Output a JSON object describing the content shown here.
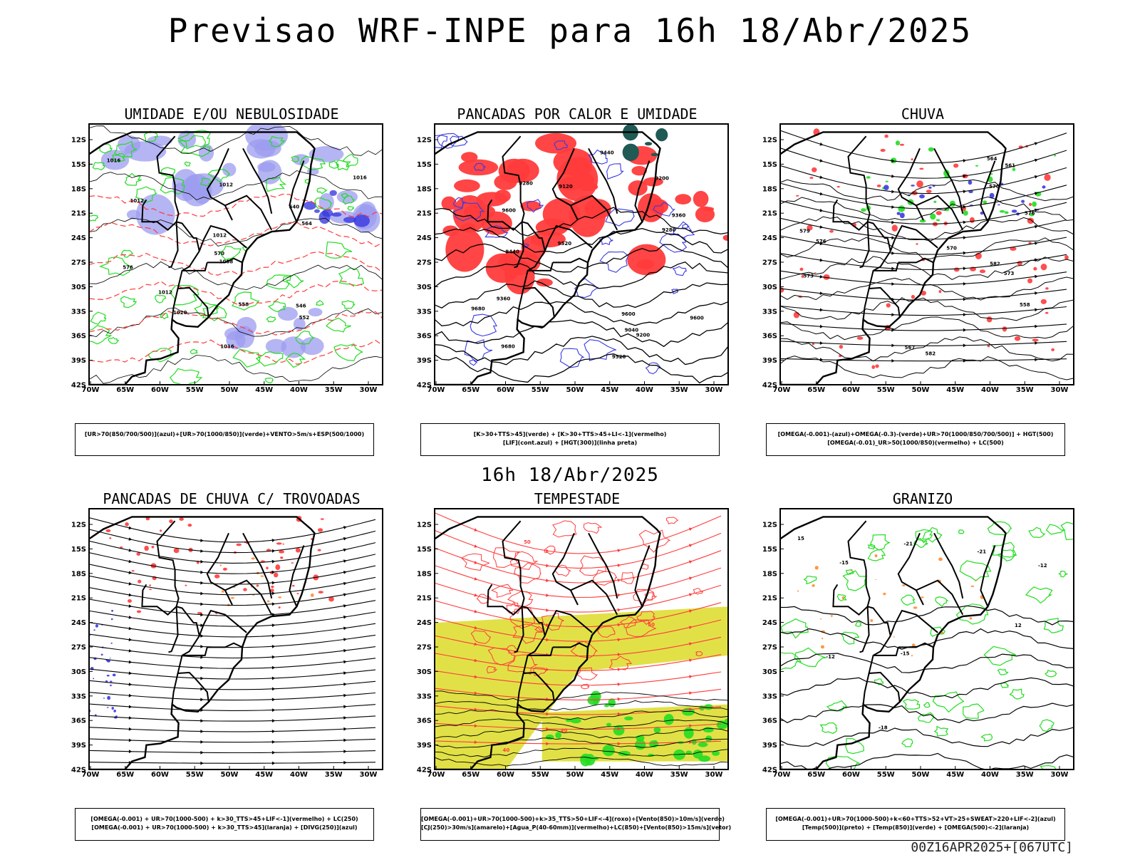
{
  "header": {
    "title": "Previsao WRF-INPE  para 16h 18/Abr/2025"
  },
  "mid_title": "16h 18/Abr/2025",
  "footer": "00Z16APR2025+[067UTC]",
  "axes": {
    "y_labels": [
      "12S",
      "15S",
      "18S",
      "21S",
      "24S",
      "27S",
      "30S",
      "33S",
      "36S",
      "39S",
      "42S"
    ],
    "x_labels": [
      "70W",
      "65W",
      "60W",
      "55W",
      "50W",
      "45W",
      "40W",
      "35W",
      "30W"
    ]
  },
  "colors": {
    "blue_fill": "#9c9cf0",
    "blue_dark": "#3a3ae0",
    "green": "#22dd22",
    "red": "#ff3b3b",
    "dark_teal": "#1f5a55",
    "yellow": "#dede33",
    "orange": "#ff8c33"
  },
  "panels": [
    {
      "title": "UMIDADE E/OU NEBULOSIDADE",
      "legend": [
        "[UR>70(850/700/500)](azul)+[UR>70(1000/850)](verde)+VENTO>5m/s+ESP(500/1000)"
      ],
      "labels": [
        "1012",
        "1016",
        "1012",
        "1012",
        "1016",
        "1016",
        "1012",
        "1020",
        "1008",
        "570",
        "576",
        "564",
        "558",
        "552",
        "546",
        "540"
      ]
    },
    {
      "title": "PANCADAS POR CALOR E UMIDADE",
      "legend": [
        "[K>30+TTS>45](verde) + [K>30+TTS>45+LI<-1](vermelho)",
        "[LIF](cont.azul) + [HGT(300)](linha preta)"
      ],
      "labels": [
        "9680",
        "9600",
        "9680",
        "9600",
        "9520",
        "9600",
        "9520",
        "9440",
        "9440",
        "9360",
        "9360",
        "9280",
        "9280",
        "9200",
        "9120",
        "9040",
        "9200"
      ]
    },
    {
      "title": "CHUVA",
      "legend": [
        "[OMEGA(-0.001)-(azul)+OMEGA(-0.3)-(verde)+UR>70(1000/850/700/500)] + HGT(500)",
        "[OMEGA(-0.01)_UR>50(1000/850)(vermelho) + LC(500)"
      ],
      "labels": [
        "582",
        "582",
        "579",
        "576",
        "573",
        "570",
        "567",
        "564",
        "561",
        "558",
        "576",
        "573",
        "570"
      ]
    },
    {
      "title": "PANCADAS DE CHUVA C/ TROVOADAS",
      "legend": [
        "[OMEGA(-0.001) + UR>70(1000-500) + k>30_TTS>45+LIF<-1](vermelho) + LC(250)",
        "[OMEGA(-0.001) + UR>70(1000-500) + k>30_TTS>45](laranja) + [DIVG(250)](azul)"
      ],
      "labels": []
    },
    {
      "title": "TEMPESTADE",
      "legend": [
        "[OMEGA(-0.001)+UR>70(1000-500)+k>35_TTS>50+LIF<-4](roxo)+[Vento(850)>10m/s](verde)",
        "[CJ(250)>30m/s](amarelo)+[Agua_P(40-60mm)](vermelho)+LC(850)+[Vento(850)>15m/s](vetor)"
      ],
      "labels": [
        "50",
        "40",
        "50",
        "40"
      ]
    },
    {
      "title": "GRANIZO",
      "legend": [
        "[OMEGA(-0.001)+UR>70(1000-500)+k<60+TTS>52+VT>25+SWEAT>220+LIF<-2](azul)",
        "[Temp(500)](preto) + [Temp(850)](verde) + [OMEGA(500)<-2](laranja)"
      ],
      "labels": [
        "-12",
        "-12",
        "-15",
        "-15",
        "-18",
        "-21",
        "-21",
        "12",
        "15"
      ]
    }
  ]
}
